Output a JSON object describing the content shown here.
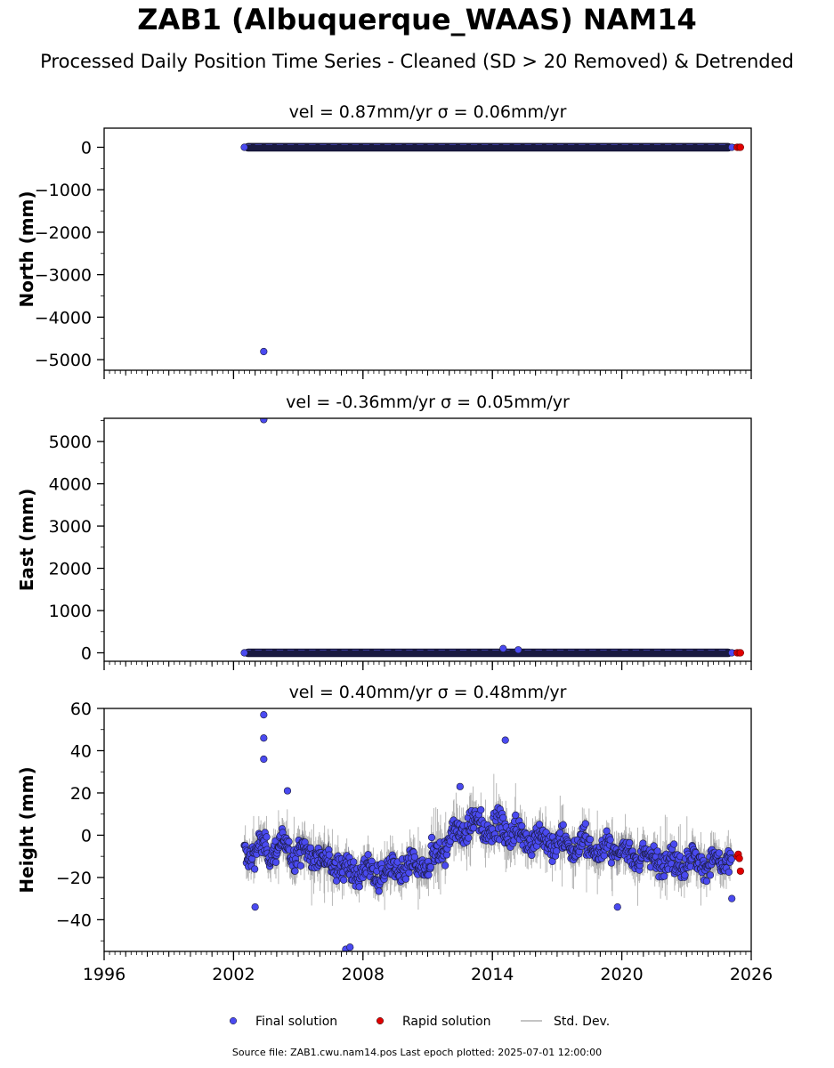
{
  "title": "ZAB1 (Albuquerque_WAAS) NAM14",
  "subtitle": "Processed Daily Position Time Series - Cleaned (SD > 20 Removed) & Detrended",
  "footer": "Source file: ZAB1.cwu.nam14.pos  Last epoch plotted: 2025-07-01 12:00:00",
  "colors": {
    "final": "#4a4af0",
    "rapid": "#e00000",
    "stddev": "#b0b0b0",
    "marker_edge": "#1a1a3a"
  },
  "chart_data": [
    {
      "type": "scatter",
      "panel": "north",
      "title": "vel = 0.87mm/yr   σ = 0.06mm/yr",
      "ylabel": "North (mm)",
      "xlim": [
        1996,
        2026
      ],
      "ylim": [
        -5250,
        450
      ],
      "x_ticks": [
        1996,
        2002,
        2008,
        2014,
        2020,
        2026
      ],
      "y_ticks": [
        0,
        -1000,
        -2000,
        -3000,
        -4000,
        -5000
      ],
      "y_tick_labels": [
        "0",
        "−1000",
        "−2000",
        "−3000",
        "−4000",
        "−5000"
      ],
      "series": [
        {
          "name": "Final solution",
          "x_range": [
            2002.5,
            2025.1
          ],
          "typical_y": 0,
          "outliers": [
            {
              "x": 2003.4,
              "y": -4810
            },
            {
              "x": 2025.1,
              "y": 0
            }
          ]
        },
        {
          "name": "Rapid solution",
          "points": [
            {
              "x": 2025.35,
              "y": 0
            },
            {
              "x": 2025.45,
              "y": 0
            },
            {
              "x": 2025.5,
              "y": 0
            }
          ]
        }
      ]
    },
    {
      "type": "scatter",
      "panel": "east",
      "title": "vel = -0.36mm/yr   σ = 0.05mm/yr",
      "ylabel": "East (mm)",
      "xlim": [
        1996,
        2026
      ],
      "ylim": [
        -200,
        5550
      ],
      "x_ticks": [
        1996,
        2002,
        2008,
        2014,
        2020,
        2026
      ],
      "y_ticks": [
        0,
        1000,
        2000,
        3000,
        4000,
        5000
      ],
      "y_tick_labels": [
        "0",
        "1000",
        "2000",
        "3000",
        "4000",
        "5000"
      ],
      "series": [
        {
          "name": "Final solution",
          "x_range": [
            2002.5,
            2025.1
          ],
          "typical_y": 0,
          "outliers": [
            {
              "x": 2003.4,
              "y": 5520
            },
            {
              "x": 2014.5,
              "y": 100
            },
            {
              "x": 2015.2,
              "y": 70
            },
            {
              "x": 2025.1,
              "y": 0
            }
          ]
        },
        {
          "name": "Rapid solution",
          "points": [
            {
              "x": 2025.35,
              "y": 0
            },
            {
              "x": 2025.45,
              "y": 0
            },
            {
              "x": 2025.5,
              "y": 0
            }
          ]
        }
      ]
    },
    {
      "type": "scatter",
      "panel": "height",
      "title": "vel = 0.40mm/yr   σ = 0.48mm/yr",
      "ylabel": "Height (mm)",
      "xlim": [
        1996,
        2026
      ],
      "ylim": [
        -55,
        60
      ],
      "x_ticks": [
        1996,
        2002,
        2008,
        2014,
        2020,
        2026
      ],
      "x_tick_labels": [
        "1996",
        "2002",
        "2008",
        "2014",
        "2020",
        "2026"
      ],
      "y_ticks": [
        60,
        40,
        20,
        0,
        -20,
        -40
      ],
      "y_tick_labels": [
        "60",
        "40",
        "20",
        "0",
        "−20",
        "−40"
      ],
      "series": [
        {
          "name": "Final solution",
          "trend": [
            [
              2002.5,
              -8
            ],
            [
              2004,
              -6
            ],
            [
              2006,
              -10
            ],
            [
              2007.5,
              -17
            ],
            [
              2009,
              -18
            ],
            [
              2011,
              -14
            ],
            [
              2012,
              -2
            ],
            [
              2013,
              5
            ],
            [
              2014.5,
              3
            ],
            [
              2016,
              -2
            ],
            [
              2018,
              -5
            ],
            [
              2020,
              -8
            ],
            [
              2022,
              -12
            ],
            [
              2024,
              -13
            ],
            [
              2025.1,
              -12
            ]
          ],
          "outliers": [
            {
              "x": 2003.4,
              "y": 57
            },
            {
              "x": 2003.4,
              "y": 46
            },
            {
              "x": 2003.4,
              "y": 36
            },
            {
              "x": 2004.5,
              "y": 21
            },
            {
              "x": 2014.6,
              "y": 45
            },
            {
              "x": 2007.2,
              "y": -54
            },
            {
              "x": 2007.4,
              "y": -53
            },
            {
              "x": 2019.8,
              "y": -34
            },
            {
              "x": 2003.0,
              "y": -34
            },
            {
              "x": 2012.5,
              "y": 23
            },
            {
              "x": 2025.1,
              "y": -30
            }
          ]
        },
        {
          "name": "Rapid solution",
          "points": [
            {
              "x": 2025.35,
              "y": -10
            },
            {
              "x": 2025.4,
              "y": -9
            },
            {
              "x": 2025.45,
              "y": -11
            },
            {
              "x": 2025.5,
              "y": -17
            }
          ]
        }
      ]
    }
  ],
  "legend": {
    "placement": "bottom-center",
    "items": [
      {
        "label": "Final solution",
        "kind": "marker",
        "color": "#4a4af0"
      },
      {
        "label": "Rapid solution",
        "kind": "marker",
        "color": "#e00000"
      },
      {
        "label": "Std. Dev.",
        "kind": "line",
        "color": "#b0b0b0"
      }
    ]
  }
}
